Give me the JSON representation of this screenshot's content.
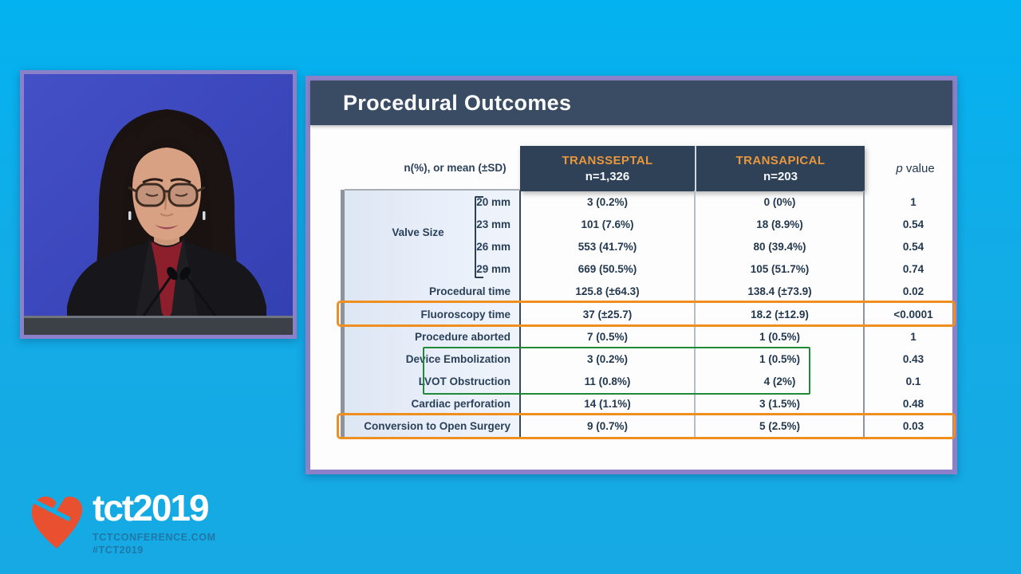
{
  "page": {
    "background_color": "#12ace7",
    "frame_border_color": "#8c81c8"
  },
  "video": {
    "description": "speaker-at-podium",
    "background_color": "#3c47bb",
    "podium_color": "#3c4047"
  },
  "slide": {
    "title": "Procedural Outcomes",
    "header_color": "#3a4b64",
    "accent_orange": "#e9973c",
    "highlight_orange": "#ee8f20",
    "highlight_green": "#218a39",
    "table": {
      "measure_label": "n(%), or mean (±SD)",
      "col_transseptal": {
        "name": "TRANSSEPTAL",
        "n": "n=1,326"
      },
      "col_transapical": {
        "name": "TRANSAPICAL",
        "n": "n=203"
      },
      "p_label_italic": "p",
      "p_label_rest": " value",
      "group_label": "Valve Size",
      "rows": [
        {
          "label": "20 mm",
          "ts": "3 (0.2%)",
          "ta": "0 (0%)",
          "p": "1"
        },
        {
          "label": "23 mm",
          "ts": "101 (7.6%)",
          "ta": "18 (8.9%)",
          "p": "0.54"
        },
        {
          "label": "26 mm",
          "ts": "553 (41.7%)",
          "ta": "80 (39.4%)",
          "p": "0.54"
        },
        {
          "label": "29 mm",
          "ts": "669 (50.5%)",
          "ta": "105 (51.7%)",
          "p": "0.74"
        },
        {
          "label": "Procedural time",
          "ts": "125.8 (±64.3)",
          "ta": "138.4 (±73.9)",
          "p": "0.02"
        },
        {
          "label": "Fluoroscopy time",
          "ts": "37 (±25.7)",
          "ta": "18.2 (±12.9)",
          "p": "<0.0001"
        },
        {
          "label": "Procedure aborted",
          "ts": "7 (0.5%)",
          "ta": "1 (0.5%)",
          "p": "1"
        },
        {
          "label": "Device Embolization",
          "ts": "3 (0.2%)",
          "ta": "1 (0.5%)",
          "p": "0.43"
        },
        {
          "label": "LVOT Obstruction",
          "ts": "11 (0.8%)",
          "ta": "4 (2%)",
          "p": "0.1"
        },
        {
          "label": "Cardiac perforation",
          "ts": "14 (1.1%)",
          "ta": "3 (1.5%)",
          "p": "0.48"
        },
        {
          "label": "Conversion to Open Surgery",
          "ts": "9 (0.7%)",
          "ta": "5 (2.5%)",
          "p": "0.03"
        }
      ]
    }
  },
  "logo": {
    "heart_color": "#e85030",
    "text_main": "tct",
    "text_year": "2019",
    "sub_line1": "TCTCONFERENCE.COM",
    "sub_line2": "#TCT2019"
  }
}
